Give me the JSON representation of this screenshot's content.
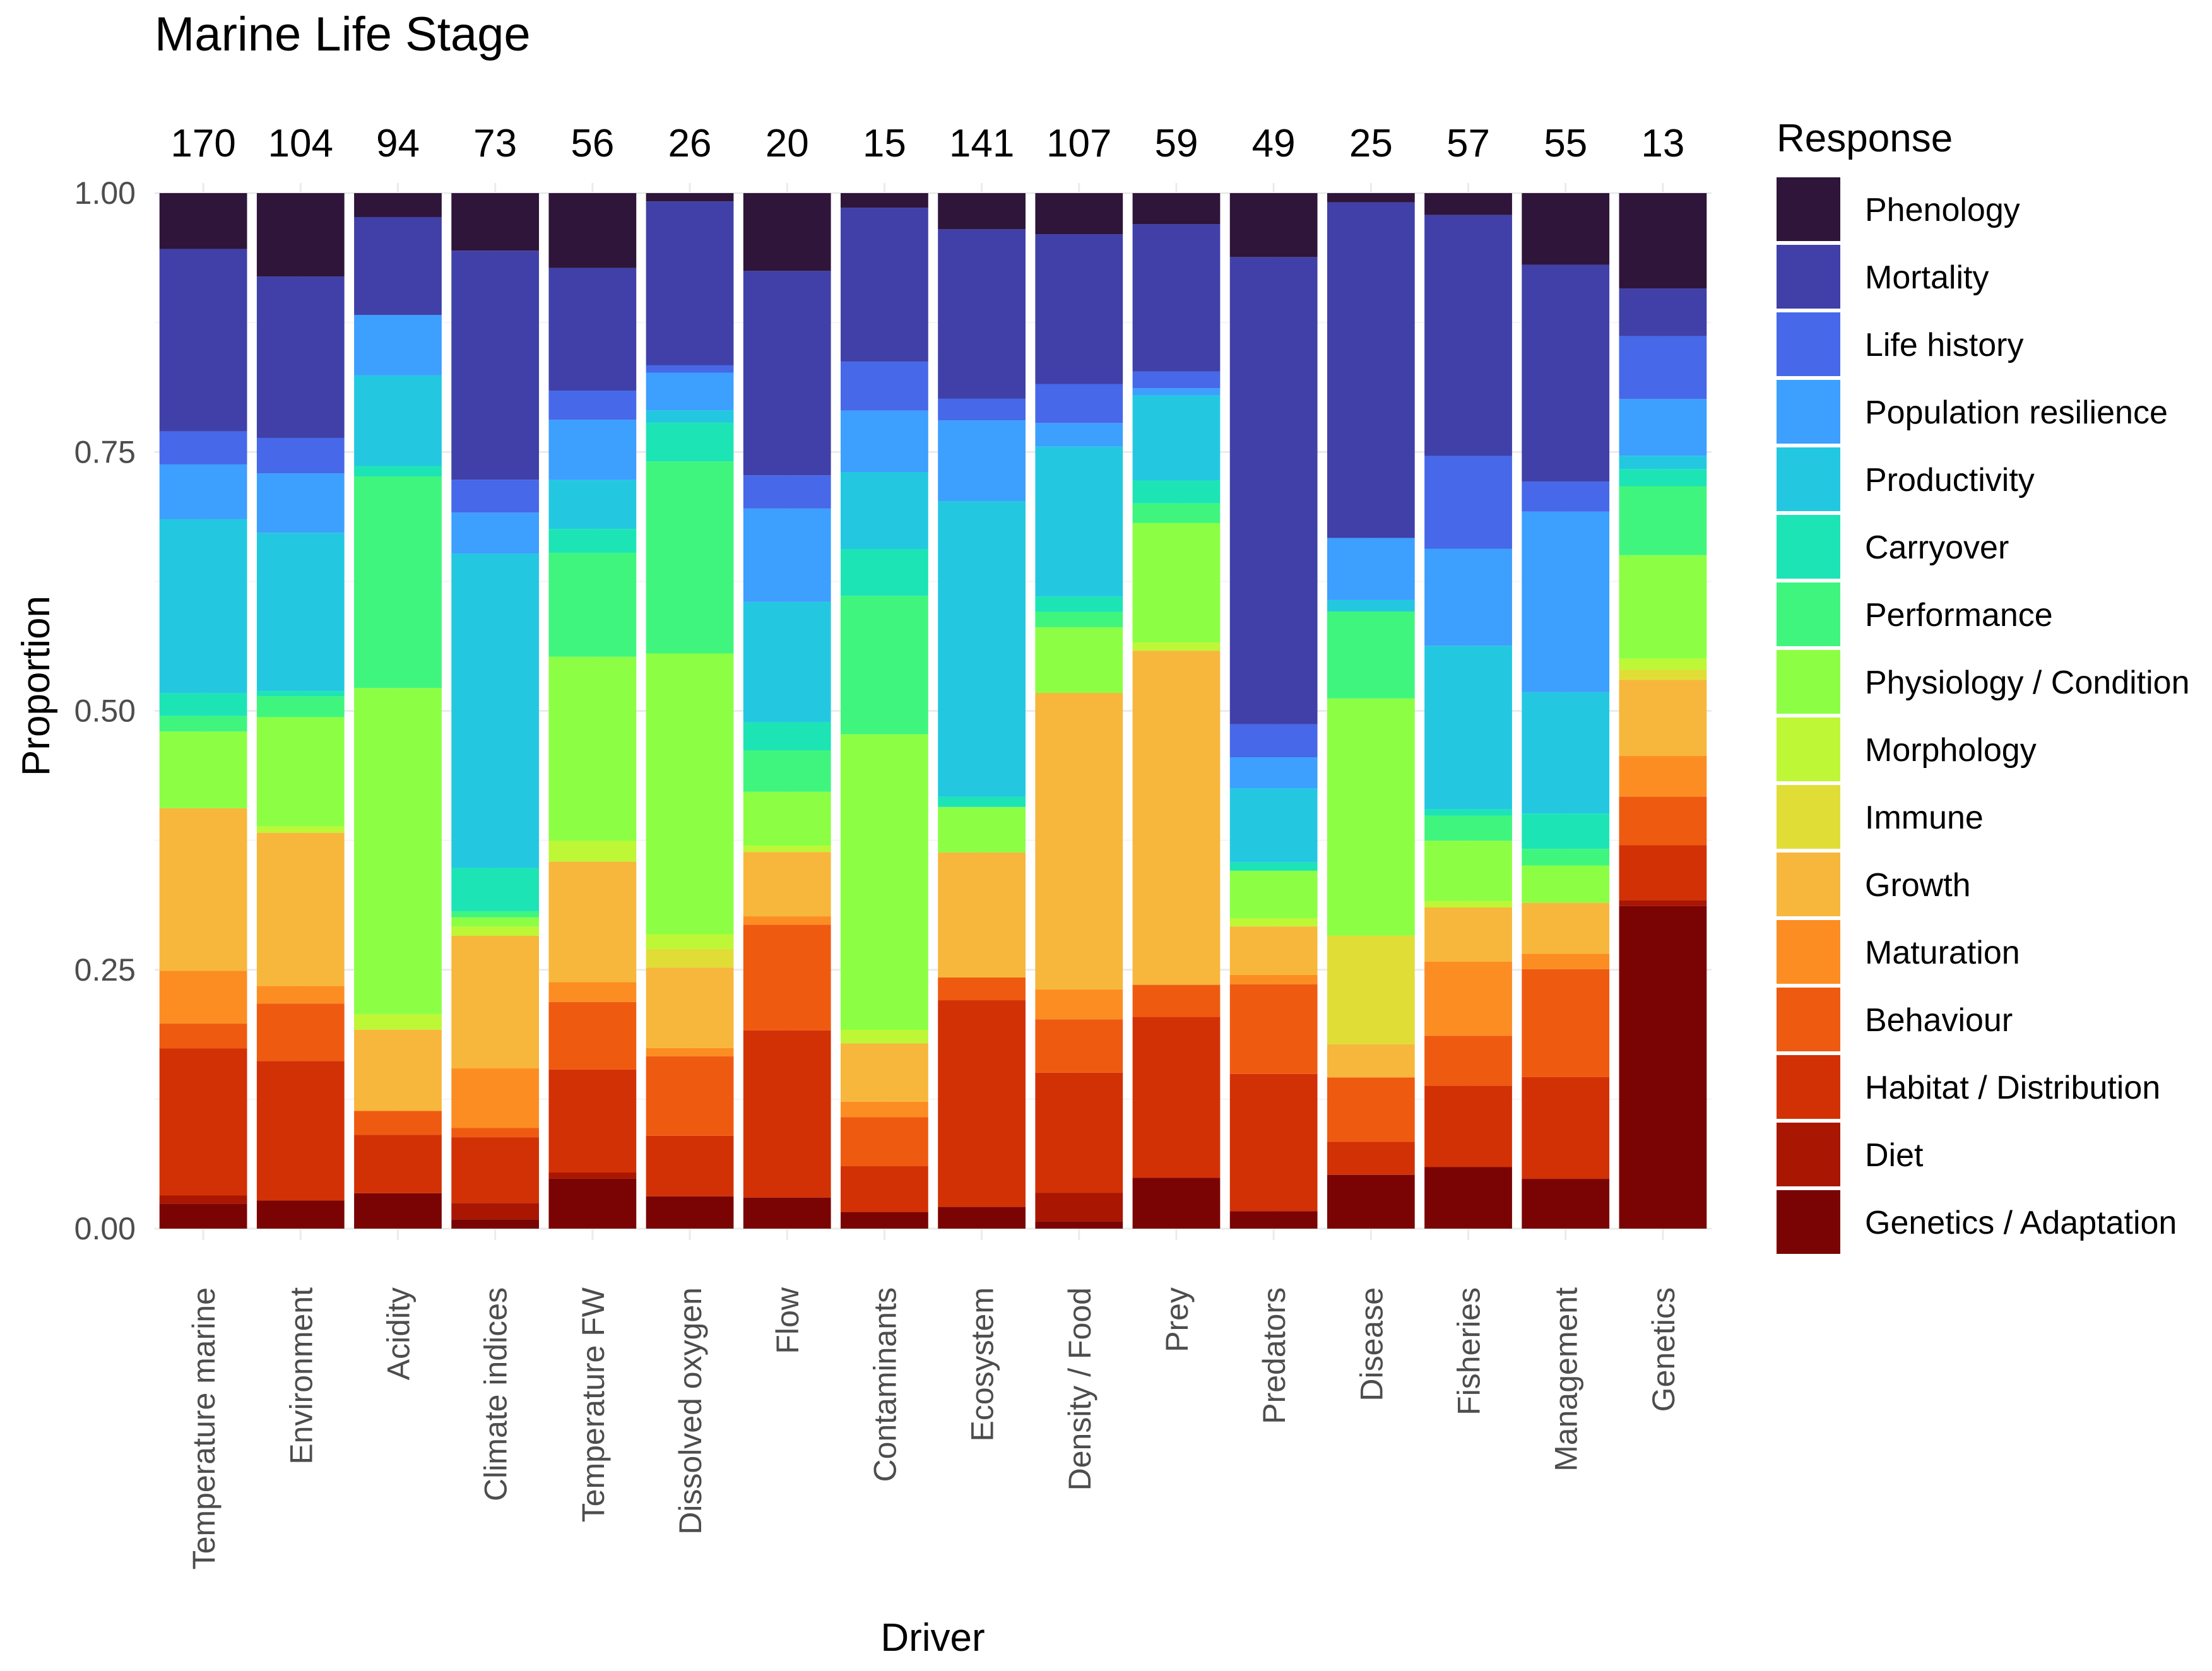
{
  "chart_data": {
    "type": "stacked-bar",
    "title": "Marine Life Stage",
    "xlabel": "Driver",
    "ylabel": "Proportion",
    "ylim": [
      0,
      1
    ],
    "yticks": [
      "0.00",
      "0.25",
      "0.50",
      "0.75",
      "1.00"
    ],
    "legend_title": "Response",
    "legend_position": "right",
    "categories": [
      "Temperature marine",
      "Environment",
      "Acidity",
      "Climate indices",
      "Temperature FW",
      "Dissolved oxygen",
      "Flow",
      "Contaminants",
      "Ecosystem",
      "Density / Food",
      "Prey",
      "Predators",
      "Disease",
      "Fisheries",
      "Management",
      "Genetics"
    ],
    "counts": [
      "170",
      "104",
      "94",
      "73",
      "56",
      "26",
      "20",
      "15",
      "141",
      "107",
      "59",
      "49",
      "25",
      "57",
      "55",
      "13"
    ],
    "series": [
      {
        "name": "Genetics / Adaptation",
        "color": "#7a0403",
        "values": [
          0.024,
          0.027,
          0.034,
          0.009,
          0.048,
          0.031,
          0.03,
          0.016,
          0.021,
          0.007,
          0.049,
          0.017,
          0.052,
          0.059,
          0.048,
          0.318
        ]
      },
      {
        "name": "Diet",
        "color": "#a91601",
        "values": [
          0.008,
          0,
          0,
          0.016,
          0.006,
          0,
          0,
          0,
          0,
          0.028,
          0,
          0,
          0,
          0,
          0,
          0.006
        ]
      },
      {
        "name": "Habitat / Distribution",
        "color": "#d23105",
        "values": [
          0.142,
          0.134,
          0.056,
          0.064,
          0.099,
          0.058,
          0.161,
          0.044,
          0.2,
          0.117,
          0.155,
          0.133,
          0.032,
          0.078,
          0.098,
          0.054
        ]
      },
      {
        "name": "Behaviour",
        "color": "#ef5a11",
        "values": [
          0.024,
          0.055,
          0.023,
          0.009,
          0.065,
          0.076,
          0.102,
          0.047,
          0.022,
          0.052,
          0.031,
          0.087,
          0.062,
          0.048,
          0.104,
          0.048
        ]
      },
      {
        "name": "Maturation",
        "color": "#fc8d23",
        "values": [
          0.051,
          0.017,
          0,
          0.058,
          0.019,
          0.008,
          0.008,
          0.015,
          0,
          0.029,
          0,
          0.009,
          0,
          0.071,
          0.015,
          0.04
        ]
      },
      {
        "name": "Growth",
        "color": "#f7b73c",
        "values": [
          0.157,
          0.147,
          0.078,
          0.129,
          0.116,
          0.077,
          0.062,
          0.056,
          0.121,
          0.289,
          0.322,
          0.047,
          0.032,
          0.052,
          0.049,
          0.075
        ]
      },
      {
        "name": "Immune",
        "color": "#e1dd37",
        "values": [
          0,
          0,
          0,
          0,
          0,
          0.018,
          0,
          0,
          0,
          0,
          0,
          0,
          0.105,
          0,
          0,
          0.01
        ]
      },
      {
        "name": "Morphology",
        "color": "#bdf735",
        "values": [
          0,
          0.006,
          0.015,
          0.009,
          0.02,
          0.014,
          0.006,
          0.013,
          0,
          0,
          0.008,
          0.008,
          0,
          0.006,
          0,
          0.011
        ]
      },
      {
        "name": "Physiology / Condition",
        "color": "#8cff45",
        "values": [
          0.074,
          0.105,
          0.313,
          0.009,
          0.177,
          0.269,
          0.052,
          0.284,
          0.044,
          0.064,
          0.115,
          0.046,
          0.229,
          0.058,
          0.036,
          0.102
        ]
      },
      {
        "name": "Performance",
        "color": "#40f57e",
        "values": [
          0.015,
          0.02,
          0.203,
          0.006,
          0.1,
          0.184,
          0.04,
          0.133,
          0,
          0.015,
          0.019,
          0,
          0.084,
          0.024,
          0.016,
          0.068
        ]
      },
      {
        "name": "Carryover",
        "color": "#1de4b5",
        "values": [
          0.022,
          0.005,
          0.01,
          0.042,
          0.023,
          0.037,
          0.027,
          0.045,
          0.01,
          0.015,
          0.022,
          0.008,
          0,
          0.006,
          0.034,
          0.017
        ]
      },
      {
        "name": "Productivity",
        "color": "#23c8e0",
        "values": [
          0.168,
          0.152,
          0.087,
          0.306,
          0.047,
          0.012,
          0.116,
          0.074,
          0.286,
          0.146,
          0.082,
          0.072,
          0.011,
          0.157,
          0.117,
          0.013
        ]
      },
      {
        "name": "Population resilience",
        "color": "#3d9ffe",
        "values": [
          0.053,
          0.057,
          0.058,
          0.04,
          0.058,
          0.036,
          0.09,
          0.059,
          0.078,
          0.023,
          0.007,
          0.03,
          0.06,
          0.093,
          0.174,
          0.056
        ]
      },
      {
        "name": "Life history",
        "color": "#4668e9",
        "values": [
          0.032,
          0.034,
          0,
          0.032,
          0.028,
          0.007,
          0.032,
          0.047,
          0.021,
          0.038,
          0.016,
          0.032,
          0,
          0.089,
          0.029,
          0.062
        ]
      },
      {
        "name": "Mortality",
        "color": "#4040a8",
        "values": [
          0.176,
          0.155,
          0.094,
          0.223,
          0.118,
          0.157,
          0.197,
          0.148,
          0.164,
          0.146,
          0.142,
          0.453,
          0.324,
          0.231,
          0.209,
          0.047
        ]
      },
      {
        "name": "Phenology",
        "color": "#2e1539",
        "values": [
          0.054,
          0.08,
          0.023,
          0.056,
          0.072,
          0.008,
          0.075,
          0.014,
          0.035,
          0.04,
          0.03,
          0.062,
          0.009,
          0.021,
          0.069,
          0.094
        ]
      }
    ]
  }
}
